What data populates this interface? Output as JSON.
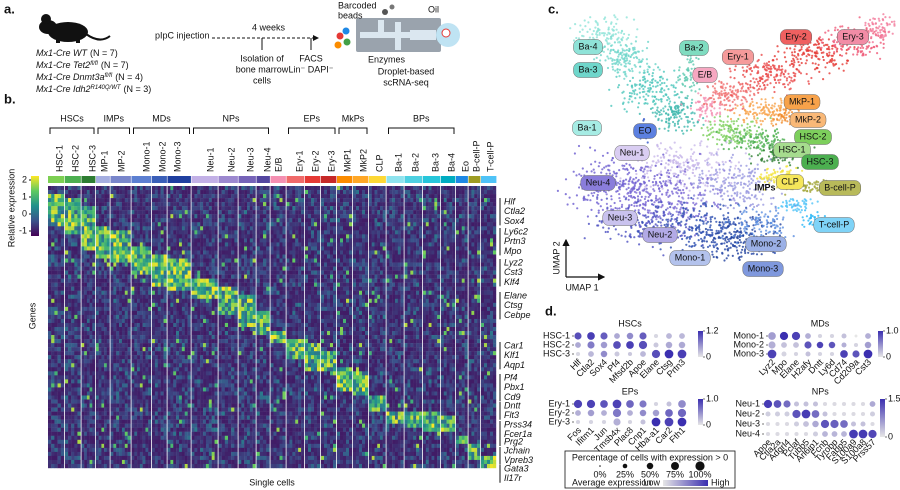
{
  "panel_a": {
    "label": "a.",
    "groups": [
      {
        "name": "Mx1-Cre WT",
        "n": "(N = 7)"
      },
      {
        "name": "Mx1-Cre Tet2",
        "sup": "fl/fl",
        "n": "(N = 7)"
      },
      {
        "name": "Mx1-Cre Dnmt3a",
        "sup": "fl/fl",
        "n": "(N = 4)"
      },
      {
        "name": "Mx1-Cre Idh2",
        "sup": "R140Q/WT",
        "n": "(N = 3)"
      }
    ],
    "injection": "pIpC injection",
    "wait": "4 weeks",
    "isolation": [
      "Isolation of",
      "bone marrow",
      "cells"
    ],
    "facs": [
      "FACS",
      "Lin⁻ DAPI⁻"
    ],
    "beads": [
      "Barcoded",
      "beads"
    ],
    "oil": "Oil",
    "enzymes": "Enzymes",
    "method": [
      "Droplet-based",
      "scRNA-seq"
    ]
  },
  "panel_b": {
    "label": "b.",
    "groups": [
      "HSCs",
      "IMPs",
      "MDs",
      "NPs",
      "EPs",
      "MkPs",
      "BPs"
    ],
    "clusters": [
      {
        "name": "HSC-1",
        "color": "#7ccf52"
      },
      {
        "name": "HSC-2",
        "color": "#4caf50"
      },
      {
        "name": "HSC-3",
        "color": "#2e7d32"
      },
      {
        "name": "MP-1",
        "color": "#a5aee0"
      },
      {
        "name": "MP-2",
        "color": "#7986cb"
      },
      {
        "name": "Mono-1",
        "color": "#5c7fd1"
      },
      {
        "name": "Mono-2",
        "color": "#3a5fb8"
      },
      {
        "name": "Mono-3",
        "color": "#1f3f9f"
      },
      {
        "name": "Neu-1",
        "color": "#c2b0e6"
      },
      {
        "name": "Neu-2",
        "color": "#9c88cf"
      },
      {
        "name": "Neu-3",
        "color": "#7663b8"
      },
      {
        "name": "Neu-4",
        "color": "#5446a0"
      },
      {
        "name": "E/B",
        "color": "#f48fb1"
      },
      {
        "name": "Ery-1",
        "color": "#f06a6a"
      },
      {
        "name": "Ery-2",
        "color": "#e53935"
      },
      {
        "name": "Ery-3",
        "color": "#c62828"
      },
      {
        "name": "MkP1",
        "color": "#fb8c00"
      },
      {
        "name": "MkP2",
        "color": "#ffa726"
      },
      {
        "name": "CLP",
        "color": "#fdd835"
      },
      {
        "name": "Ba-1",
        "color": "#8ee3ee"
      },
      {
        "name": "Ba-2",
        "color": "#4dd0e1"
      },
      {
        "name": "Ba-3",
        "color": "#26c6da"
      },
      {
        "name": "Ba-4",
        "color": "#00acc1"
      },
      {
        "name": "Eo",
        "color": "#1e88e5"
      },
      {
        "name": "B-cell-P",
        "color": "#9e9d24"
      },
      {
        "name": "T-cell-P",
        "color": "#4fc3f7"
      }
    ],
    "colorbar_title": "Relative expression",
    "colorbar_ticks": [
      2,
      1,
      0,
      -1
    ],
    "y_label": "Genes",
    "x_label": "Single cells",
    "genes": [
      [
        "Hlf",
        "Ctla2",
        "Sox4"
      ],
      [
        "Ly6c2",
        "Prtn3",
        "Mpo"
      ],
      [
        "Lyz2",
        "Cst3",
        "Klf4"
      ],
      [
        "Elane",
        "Ctsg",
        "Cebpe"
      ],
      [
        "Car1",
        "Klf1",
        "Aqp1"
      ],
      [
        "Pf4",
        "Pbx1",
        "Cd9"
      ],
      [
        "Dntt",
        "Flt3"
      ],
      [
        "Prss34",
        "Fcer1a"
      ],
      [
        "Prg2"
      ],
      [
        "Jchain",
        "Vpreb3"
      ],
      [
        "Gata3",
        "Il17r"
      ]
    ]
  },
  "panel_c": {
    "label": "c.",
    "x_label": "UMAP 1",
    "y_label": "UMAP 2",
    "clusters": [
      {
        "name": "Ba-4",
        "color": "#8fe3d8"
      },
      {
        "name": "Ba-2",
        "color": "#7fdcc0"
      },
      {
        "name": "Ba-3",
        "color": "#6fd6cb"
      },
      {
        "name": "Ba-1",
        "color": "#a6ece4"
      },
      {
        "name": "E/B",
        "color": "#f6a7c1"
      },
      {
        "name": "Ery-1",
        "color": "#f59a9a"
      },
      {
        "name": "Ery-2",
        "color": "#ef6060"
      },
      {
        "name": "Ery-3",
        "color": "#f28ca6"
      },
      {
        "name": "MkP-1",
        "color": "#f7a24a"
      },
      {
        "name": "MkP-2",
        "color": "#f9b877"
      },
      {
        "name": "HSC-2",
        "color": "#7dcf5c"
      },
      {
        "name": "HSC-1",
        "color": "#a6dc8e"
      },
      {
        "name": "HSC-3",
        "color": "#4caf50"
      },
      {
        "name": "EO",
        "color": "#5c80e0"
      },
      {
        "name": "Neu-1",
        "color": "#d9cdf2"
      },
      {
        "name": "Neu-4",
        "color": "#8a7ddb"
      },
      {
        "name": "IMPs"
      },
      {
        "name": "CLP",
        "color": "#f5e65a"
      },
      {
        "name": "B-cell-P",
        "color": "#b8ba5a"
      },
      {
        "name": "T-cell-P",
        "color": "#7fd3f7"
      },
      {
        "name": "Neu-3",
        "color": "#c9c2ee"
      },
      {
        "name": "Neu-2",
        "color": "#b2aae6"
      },
      {
        "name": "Mono-2",
        "color": "#9bb0e6"
      },
      {
        "name": "Mono-1",
        "color": "#b3c2ec"
      },
      {
        "name": "Mono-3",
        "color": "#7f98dd"
      }
    ]
  },
  "panel_d": {
    "label": "d.",
    "plots": [
      {
        "title": "HSCs",
        "rows": [
          "HSC-1",
          "HSC-2",
          "HSC-3"
        ],
        "cols": [
          "Hlf",
          "Ctla2",
          "Sox4",
          "Pf4",
          "Mfsd2b",
          "Apoe",
          "Elane",
          "Ctsg",
          "Prtn3"
        ],
        "pct": [
          [
            60,
            70,
            60,
            40,
            50,
            60,
            20,
            40,
            40
          ],
          [
            40,
            60,
            50,
            70,
            70,
            80,
            30,
            50,
            50
          ],
          [
            20,
            40,
            50,
            30,
            20,
            40,
            80,
            90,
            90
          ]
        ],
        "expr": [
          [
            1.0,
            1.1,
            0.9,
            0.4,
            0.6,
            0.9,
            0.1,
            0.3,
            0.3
          ],
          [
            0.4,
            0.7,
            0.5,
            1.0,
            1.1,
            1.0,
            0.2,
            0.4,
            0.4
          ],
          [
            0.1,
            0.3,
            0.6,
            0.2,
            0.2,
            0.3,
            1.0,
            1.2,
            1.1
          ]
        ],
        "colorbar_ticks": [
          {
            "value": 1.2,
            "label": "1.2"
          },
          0
        ]
      },
      {
        "title": "MDs",
        "rows": [
          "Mono-1",
          "Mono-2",
          "Mono-3"
        ],
        "cols": [
          "Lyz2",
          "Mpo",
          "Elane",
          "H2afy",
          "Dntt",
          "Ly6d",
          "Cd74",
          "Cd209a",
          "Cst3"
        ],
        "pct": [
          [
            70,
            80,
            80,
            40,
            20,
            20,
            30,
            10,
            40
          ],
          [
            60,
            40,
            40,
            60,
            50,
            50,
            30,
            20,
            50
          ],
          [
            90,
            30,
            20,
            30,
            20,
            20,
            70,
            60,
            90
          ]
        ],
        "expr": [
          [
            0.4,
            1.0,
            0.9,
            0.3,
            0.1,
            0.1,
            0.2,
            0.0,
            0.3
          ],
          [
            0.3,
            0.2,
            0.2,
            0.8,
            0.9,
            0.8,
            0.3,
            0.1,
            0.4
          ],
          [
            0.9,
            0.1,
            0.1,
            0.2,
            0.1,
            0.1,
            0.9,
            0.8,
            1.0
          ]
        ],
        "colorbar_ticks": [
          {
            "value": 1,
            "label": "1.0"
          },
          0
        ]
      },
      {
        "title": "EPs",
        "rows": [
          "Ery-1",
          "Ery-2",
          "Ery-3"
        ],
        "cols": [
          "Fos",
          "Ifitm1",
          "Jun",
          "Tmsb4x",
          "Plac8",
          "Cnp1",
          "Hba-a1",
          "Car2",
          "Fth1"
        ],
        "pct": [
          [
            80,
            80,
            70,
            90,
            70,
            60,
            20,
            30,
            70
          ],
          [
            40,
            50,
            40,
            80,
            40,
            50,
            50,
            70,
            80
          ],
          [
            20,
            20,
            20,
            60,
            20,
            30,
            90,
            90,
            90
          ]
        ],
        "expr": [
          [
            0.9,
            0.9,
            0.8,
            0.9,
            0.7,
            0.6,
            0.1,
            0.2,
            0.5
          ],
          [
            0.3,
            0.4,
            0.3,
            0.6,
            0.3,
            0.5,
            0.4,
            0.7,
            0.7
          ],
          [
            0.1,
            0.1,
            0.1,
            0.3,
            0.1,
            0.2,
            1.0,
            0.9,
            1.0
          ]
        ],
        "colorbar_ticks": [
          {
            "value": 1,
            "label": "1.0"
          },
          0
        ]
      },
      {
        "title": "NPs",
        "rows": [
          "Neu-1",
          "Neu-2",
          "Neu-3",
          "Neu-4"
        ],
        "cols": [
          "Apoe",
          "Ctla2a",
          "Adgrl4",
          "Pclaf",
          "Tubb5",
          "Arl6ip1",
          "Fcnb",
          "Tyrobp",
          "Fabp5",
          "S100a9",
          "S100a8",
          "Prss57"
        ],
        "pct": [
          [
            80,
            70,
            60,
            30,
            30,
            30,
            20,
            20,
            20,
            20,
            20,
            40
          ],
          [
            30,
            30,
            30,
            80,
            90,
            70,
            30,
            20,
            20,
            20,
            20,
            30
          ],
          [
            20,
            20,
            20,
            30,
            40,
            50,
            80,
            80,
            70,
            30,
            30,
            20
          ],
          [
            20,
            20,
            20,
            20,
            20,
            30,
            40,
            40,
            40,
            90,
            90,
            80
          ]
        ],
        "expr": [
          [
            1.4,
            1.2,
            1.0,
            0.3,
            0.3,
            0.3,
            0.1,
            0.1,
            0.1,
            0.1,
            0.1,
            0.5
          ],
          [
            0.2,
            0.2,
            0.2,
            1.2,
            1.4,
            1.0,
            0.3,
            0.1,
            0.1,
            0.1,
            0.1,
            0.2
          ],
          [
            0.1,
            0.1,
            0.1,
            0.2,
            0.3,
            0.5,
            1.2,
            1.1,
            1.0,
            0.3,
            0.3,
            0.1
          ],
          [
            0.1,
            0.1,
            0.1,
            0.1,
            0.1,
            0.2,
            0.4,
            0.4,
            0.4,
            1.4,
            1.4,
            1.3
          ]
        ],
        "colorbar_ticks": [
          {
            "value": 1.5,
            "label": "1.5"
          },
          0
        ]
      }
    ],
    "legend": {
      "size_title": "Percentage of cells with expression > 0",
      "sizes": [
        {
          "value": 0,
          "label": "0%"
        },
        {
          "value": 25,
          "label": "25%"
        },
        {
          "value": 50,
          "label": "50%"
        },
        {
          "value": 75,
          "label": "75%"
        },
        {
          "value": 100,
          "label": "100%"
        }
      ],
      "color_title": "Average expression",
      "low": "Low",
      "high": "High"
    }
  }
}
